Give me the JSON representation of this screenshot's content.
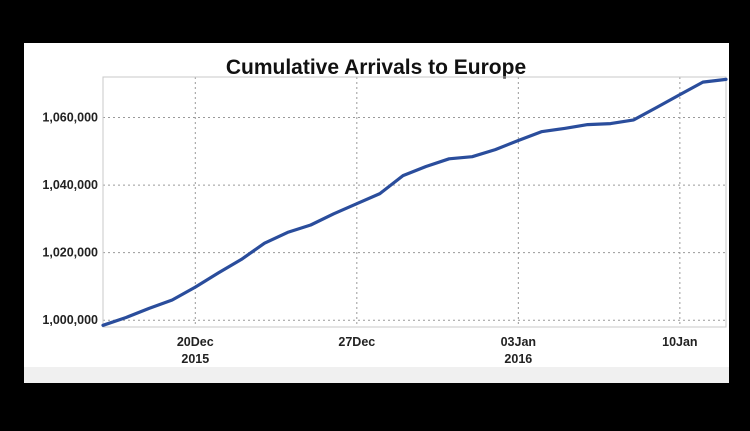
{
  "chart_data": {
    "type": "line",
    "title": "Cumulative Arrivals to Europe",
    "xlabel": "",
    "ylabel": "",
    "x_range": [
      "2015-12-16",
      "2016-01-12"
    ],
    "ylim": [
      998000,
      1072000
    ],
    "grid": true,
    "legend": "none",
    "line_color": "#2a4d9c",
    "y_ticks": [
      {
        "value": 1000000,
        "label": "1,000,000"
      },
      {
        "value": 1020000,
        "label": "1,020,000"
      },
      {
        "value": 1040000,
        "label": "1,040,000"
      },
      {
        "value": 1060000,
        "label": "1,060,000"
      }
    ],
    "x_ticks": [
      {
        "date": "2015-12-20",
        "label": "20Dec",
        "sublabel": "2015"
      },
      {
        "date": "2015-12-27",
        "label": "27Dec",
        "sublabel": ""
      },
      {
        "date": "2016-01-03",
        "label": "03Jan",
        "sublabel": "2016"
      },
      {
        "date": "2016-01-10",
        "label": "10Jan",
        "sublabel": ""
      }
    ],
    "series": [
      {
        "points": [
          {
            "x": "2015-12-16",
            "y": 998500
          },
          {
            "x": "2015-12-17",
            "y": 1000800
          },
          {
            "x": "2015-12-18",
            "y": 1003500
          },
          {
            "x": "2015-12-19",
            "y": 1006000
          },
          {
            "x": "2015-12-20",
            "y": 1009800
          },
          {
            "x": "2015-12-21",
            "y": 1014000
          },
          {
            "x": "2015-12-22",
            "y": 1018000
          },
          {
            "x": "2015-12-23",
            "y": 1022800
          },
          {
            "x": "2015-12-24",
            "y": 1026000
          },
          {
            "x": "2015-12-25",
            "y": 1028200
          },
          {
            "x": "2015-12-26",
            "y": 1031500
          },
          {
            "x": "2015-12-27",
            "y": 1034500
          },
          {
            "x": "2015-12-28",
            "y": 1037500
          },
          {
            "x": "2015-12-29",
            "y": 1042800
          },
          {
            "x": "2015-12-30",
            "y": 1045500
          },
          {
            "x": "2015-12-31",
            "y": 1047800
          },
          {
            "x": "2016-01-01",
            "y": 1048400
          },
          {
            "x": "2016-01-02",
            "y": 1050500
          },
          {
            "x": "2016-01-03",
            "y": 1053200
          },
          {
            "x": "2016-01-04",
            "y": 1055800
          },
          {
            "x": "2016-01-05",
            "y": 1056800
          },
          {
            "x": "2016-01-06",
            "y": 1057900
          },
          {
            "x": "2016-01-07",
            "y": 1058200
          },
          {
            "x": "2016-01-08",
            "y": 1059300
          },
          {
            "x": "2016-01-09",
            "y": 1063000
          },
          {
            "x": "2016-01-10",
            "y": 1066800
          },
          {
            "x": "2016-01-11",
            "y": 1070500
          },
          {
            "x": "2016-01-12",
            "y": 1071300
          }
        ]
      }
    ]
  }
}
